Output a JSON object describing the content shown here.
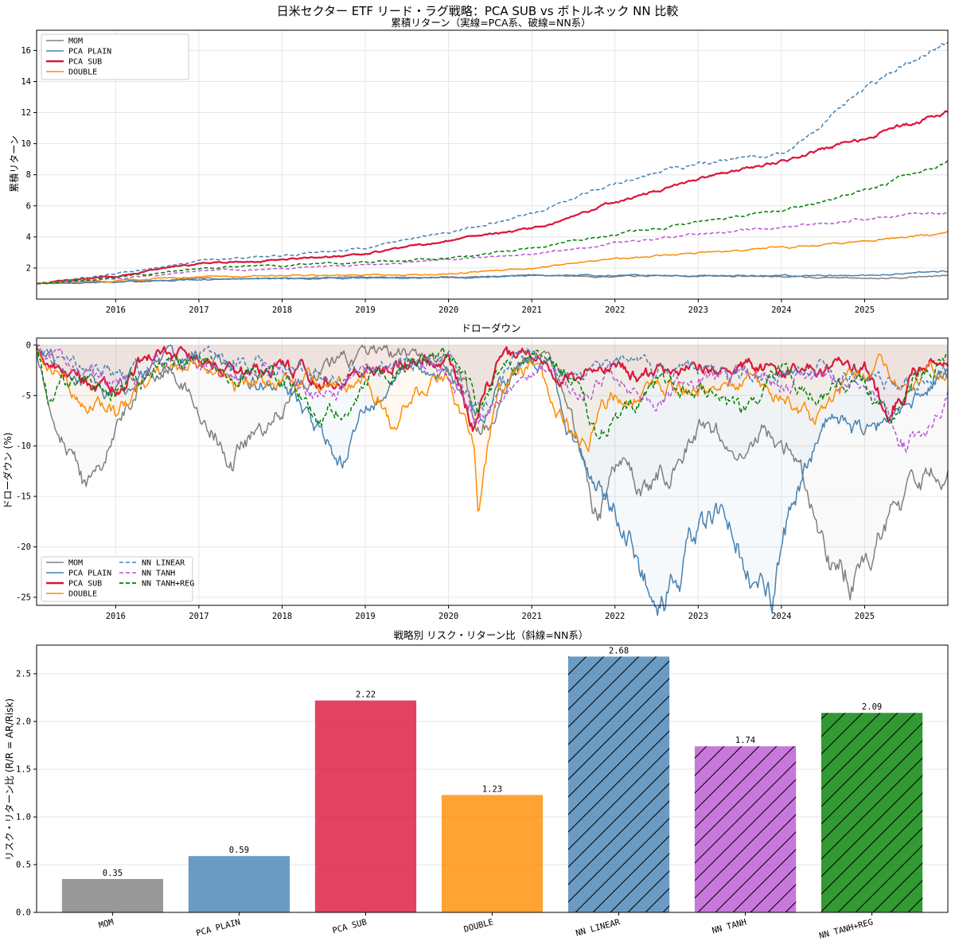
{
  "figure_title": "日米セクター ETF リード・ラグ戦略：PCA SUB vs ボトルネック NN 比較",
  "chart_data": [
    {
      "type": "line",
      "title": "累積リターン（実線=PCA系、破線=NN系）",
      "xlabel": "",
      "ylabel": "累積リターン",
      "xlim": [
        2015.05,
        2026.0
      ],
      "ylim": [
        0,
        17.3
      ],
      "xticks": [
        "2016",
        "2017",
        "2018",
        "2019",
        "2020",
        "2021",
        "2022",
        "2023",
        "2024",
        "2025"
      ],
      "yticks": [
        "2",
        "4",
        "6",
        "8",
        "10",
        "12",
        "14",
        "16"
      ],
      "grid": true,
      "legend_position": "top-left",
      "legend": [
        "MOM",
        "PCA PLAIN",
        "PCA SUB",
        "DOUBLE"
      ],
      "series": [
        {
          "name": "MOM",
          "color": "#808080",
          "style": "solid",
          "x": [
            2015.05,
            2016,
            2017,
            2018,
            2019,
            2020,
            2021,
            2022,
            2023,
            2024,
            2025,
            2026
          ],
          "values": [
            1.0,
            1.1,
            1.3,
            1.35,
            1.4,
            1.4,
            1.55,
            1.45,
            1.5,
            1.45,
            1.35,
            1.5
          ]
        },
        {
          "name": "PCA PLAIN",
          "color": "#4682b4",
          "style": "solid",
          "x": [
            2015.05,
            2016,
            2017,
            2018,
            2019,
            2020,
            2021,
            2022,
            2023,
            2024,
            2025,
            2026
          ],
          "values": [
            1.0,
            1.1,
            1.25,
            1.3,
            1.35,
            1.35,
            1.5,
            1.55,
            1.5,
            1.5,
            1.55,
            1.8
          ]
        },
        {
          "name": "PCA SUB",
          "color": "#dc143c",
          "style": "solid",
          "x": [
            2015.05,
            2016,
            2017,
            2018,
            2019,
            2020,
            2021,
            2022,
            2023,
            2024,
            2025,
            2026
          ],
          "values": [
            1.0,
            1.5,
            2.3,
            2.5,
            2.9,
            3.8,
            4.5,
            6.3,
            7.6,
            8.9,
            10.3,
            12.0
          ]
        },
        {
          "name": "DOUBLE",
          "color": "#ff8c00",
          "style": "solid",
          "x": [
            2015.05,
            2016,
            2017,
            2018,
            2019,
            2020,
            2021,
            2022,
            2023,
            2024,
            2025,
            2026
          ],
          "values": [
            1.0,
            1.2,
            1.45,
            1.5,
            1.55,
            1.6,
            2.0,
            2.6,
            3.0,
            3.3,
            3.7,
            4.25
          ]
        },
        {
          "name": "NN LINEAR",
          "color": "#4682b4",
          "style": "dashed",
          "x": [
            2015.05,
            2016,
            2017,
            2018,
            2019,
            2020,
            2021,
            2022,
            2023,
            2024,
            2025,
            2026
          ],
          "values": [
            1.0,
            1.6,
            2.5,
            2.8,
            3.3,
            4.3,
            5.5,
            7.4,
            8.8,
            9.3,
            13.5,
            16.6
          ]
        },
        {
          "name": "NN TANH",
          "color": "#ba55d3",
          "style": "dashed",
          "x": [
            2015.05,
            2016,
            2017,
            2018,
            2019,
            2020,
            2021,
            2022,
            2023,
            2024,
            2025,
            2026
          ],
          "values": [
            1.0,
            1.3,
            1.8,
            2.0,
            2.2,
            2.6,
            2.9,
            3.6,
            4.2,
            4.6,
            5.2,
            5.6
          ]
        },
        {
          "name": "NN TANH+REG",
          "color": "#008000",
          "style": "dashed",
          "x": [
            2015.05,
            2016,
            2017,
            2018,
            2019,
            2020,
            2021,
            2022,
            2023,
            2024,
            2025,
            2026
          ],
          "values": [
            1.0,
            1.4,
            2.0,
            2.2,
            2.4,
            2.6,
            3.3,
            4.2,
            5.0,
            5.7,
            7.0,
            8.8
          ]
        }
      ]
    },
    {
      "type": "line",
      "title": "ドローダウン",
      "xlabel": "",
      "ylabel": "ドローダウン (%)",
      "xlim": [
        2015.05,
        2026.0
      ],
      "ylim": [
        -25.8,
        0.7
      ],
      "xticks": [
        "2016",
        "2017",
        "2018",
        "2019",
        "2020",
        "2021",
        "2022",
        "2023",
        "2024",
        "2025"
      ],
      "yticks": [
        "0",
        "-5",
        "-10",
        "-15",
        "-20",
        "-25"
      ],
      "grid": true,
      "legend_position": "bottom-left",
      "legend": [
        "MOM",
        "PCA PLAIN",
        "PCA SUB",
        "DOUBLE",
        "NN LINEAR",
        "NN TANH",
        "NN TANH+REG"
      ],
      "series": [
        {
          "name": "MOM",
          "color": "#808080",
          "style": "solid",
          "x": [
            2015.05,
            2015.3,
            2015.6,
            2015.9,
            2016.3,
            2016.7,
            2017.0,
            2017.4,
            2017.8,
            2018.2,
            2018.6,
            2019.0,
            2019.4,
            2019.8,
            2020.2,
            2020.4,
            2020.8,
            2021.2,
            2021.5,
            2021.8,
            2022.0,
            2022.4,
            2022.8,
            2023.0,
            2023.4,
            2023.8,
            2024.2,
            2024.6,
            2024.9,
            2025.2,
            2025.6,
            2026.0
          ],
          "values": [
            -1.0,
            -8,
            -14,
            -10,
            -3,
            -2,
            -6,
            -11,
            -8,
            -4,
            -2,
            -1,
            -1,
            -1,
            -4,
            -9,
            -2,
            -1,
            -8,
            -17,
            -13,
            -14,
            -11,
            -8,
            -10,
            -8,
            -12,
            -21,
            -23,
            -19,
            -15,
            -12
          ]
        },
        {
          "name": "PCA PLAIN",
          "color": "#4682b4",
          "style": "solid",
          "x": [
            2015.05,
            2015.5,
            2016.0,
            2016.5,
            2017.0,
            2017.5,
            2018.0,
            2018.4,
            2018.7,
            2019.0,
            2019.5,
            2020.0,
            2020.4,
            2020.8,
            2021.2,
            2021.6,
            2022.0,
            2022.3,
            2022.6,
            2023.0,
            2023.3,
            2023.6,
            2023.9,
            2024.2,
            2024.6,
            2025.0,
            2025.4,
            2026.0
          ],
          "values": [
            -1,
            -3,
            -5,
            -2,
            -1,
            -3,
            -4,
            -8,
            -12,
            -6,
            -2,
            -3,
            -8,
            -2,
            -1,
            -12,
            -16,
            -22,
            -24,
            -19,
            -17,
            -22,
            -24,
            -14,
            -6,
            -10,
            -6,
            -3
          ]
        },
        {
          "name": "PCA SUB",
          "color": "#dc143c",
          "style": "solid",
          "x": [
            2015.05,
            2015.5,
            2016.0,
            2016.5,
            2017.0,
            2017.5,
            2018.0,
            2018.5,
            2019.0,
            2019.5,
            2020.0,
            2020.3,
            2020.6,
            2021.0,
            2021.5,
            2022.0,
            2022.5,
            2023.0,
            2023.5,
            2024.0,
            2024.5,
            2025.0,
            2025.3,
            2025.6,
            2026.0
          ],
          "values": [
            -0.5,
            -3,
            -4,
            -1,
            -1,
            -3,
            -2,
            -4,
            -2,
            -2,
            -1,
            -8,
            -2,
            -1,
            -3,
            -2,
            -3,
            -2,
            -2,
            -3,
            -2,
            -2,
            -7,
            -3,
            -1
          ]
        },
        {
          "name": "DOUBLE",
          "color": "#ff8c00",
          "style": "solid",
          "x": [
            2015.05,
            2015.5,
            2016.0,
            2016.5,
            2017.0,
            2017.5,
            2018.0,
            2018.5,
            2019.0,
            2019.3,
            2019.6,
            2020.0,
            2020.3,
            2020.35,
            2020.6,
            2021.0,
            2021.3,
            2021.6,
            2022.0,
            2022.5,
            2023.0,
            2023.5,
            2024.0,
            2024.4,
            2024.8,
            2025.2,
            2025.6,
            2026.0
          ],
          "values": [
            -1,
            -5,
            -7,
            -3,
            -2,
            -5,
            -3,
            -4,
            -3,
            -7,
            -5,
            -3,
            -10,
            -16,
            -4,
            -2,
            -6,
            -10,
            -5,
            -4,
            -4,
            -3,
            -5,
            -8,
            -4,
            -2,
            -4,
            -2
          ]
        },
        {
          "name": "NN LINEAR",
          "color": "#4682b4",
          "style": "dashed",
          "x": [
            2015.05,
            2015.5,
            2016.0,
            2016.5,
            2017.0,
            2017.5,
            2018.0,
            2018.5,
            2019.0,
            2019.5,
            2020.0,
            2020.35,
            2020.7,
            2021.0,
            2021.5,
            2022.0,
            2022.5,
            2023.0,
            2023.5,
            2024.0,
            2024.5,
            2025.0,
            2025.5,
            2026.0
          ],
          "values": [
            -0.5,
            -2,
            -3,
            -2,
            -1,
            -2,
            -2,
            -3,
            -2,
            -2,
            -1,
            -7,
            -2,
            -1,
            -3,
            -2,
            -3,
            -2,
            -3,
            -3,
            -2,
            -3,
            -4,
            -3
          ]
        },
        {
          "name": "NN TANH",
          "color": "#ba55d3",
          "style": "dashed",
          "x": [
            2015.05,
            2015.5,
            2016.0,
            2016.5,
            2017.0,
            2017.5,
            2018.0,
            2018.5,
            2019.0,
            2019.5,
            2020.0,
            2020.35,
            2020.7,
            2021.0,
            2021.5,
            2022.0,
            2022.5,
            2023.0,
            2023.5,
            2024.0,
            2024.5,
            2025.0,
            2025.5,
            2026.0
          ],
          "values": [
            -0.5,
            -2,
            -4,
            -2,
            -2,
            -3,
            -2,
            -5,
            -3,
            -2,
            -2,
            -8,
            -3,
            -2,
            -4,
            -3,
            -5,
            -4,
            -3,
            -4,
            -3,
            -4,
            -10,
            -5
          ]
        },
        {
          "name": "NN TANH+REG",
          "color": "#008000",
          "style": "dashed",
          "x": [
            2015.05,
            2015.2,
            2015.5,
            2016.0,
            2016.5,
            2017.0,
            2017.5,
            2018.0,
            2018.5,
            2019.0,
            2019.5,
            2020.0,
            2020.35,
            2020.7,
            2021.0,
            2021.5,
            2021.8,
            2022.0,
            2022.5,
            2023.0,
            2023.5,
            2024.0,
            2024.5,
            2025.0,
            2025.3,
            2025.6,
            2026.0
          ],
          "values": [
            -0.5,
            -6,
            -3,
            -4,
            -2,
            -2,
            -3,
            -3,
            -8,
            -3,
            -2,
            -1,
            -6,
            -2,
            -1,
            -3,
            -10,
            -7,
            -4,
            -4,
            -7,
            -3,
            -5,
            -4,
            -7,
            -3,
            -1
          ]
        }
      ]
    },
    {
      "type": "bar",
      "title": "戦略別 リスク・リターン比（斜線=NN系）",
      "xlabel": "",
      "ylabel": "リスク・リターン比 (R/R = AR/Risk)",
      "ylim": [
        0,
        2.8
      ],
      "yticks": [
        "0.0",
        "0.5",
        "1.0",
        "1.5",
        "2.0",
        "2.5"
      ],
      "grid": true,
      "categories": [
        "MOM",
        "PCA PLAIN",
        "PCA SUB",
        "DOUBLE",
        "NN LINEAR",
        "NN TANH",
        "NN TANH+REG"
      ],
      "values": [
        0.35,
        0.59,
        2.22,
        1.23,
        2.68,
        1.74,
        2.09
      ],
      "labels": [
        "0.35",
        "0.59",
        "2.22",
        "1.23",
        "2.68",
        "1.74",
        "2.09"
      ],
      "colors": [
        "#808080",
        "#4682b4",
        "#dc143c",
        "#ff8c00",
        "#4682b4",
        "#ba55d3",
        "#008000"
      ],
      "hatched": [
        false,
        false,
        false,
        false,
        true,
        true,
        true
      ]
    }
  ]
}
